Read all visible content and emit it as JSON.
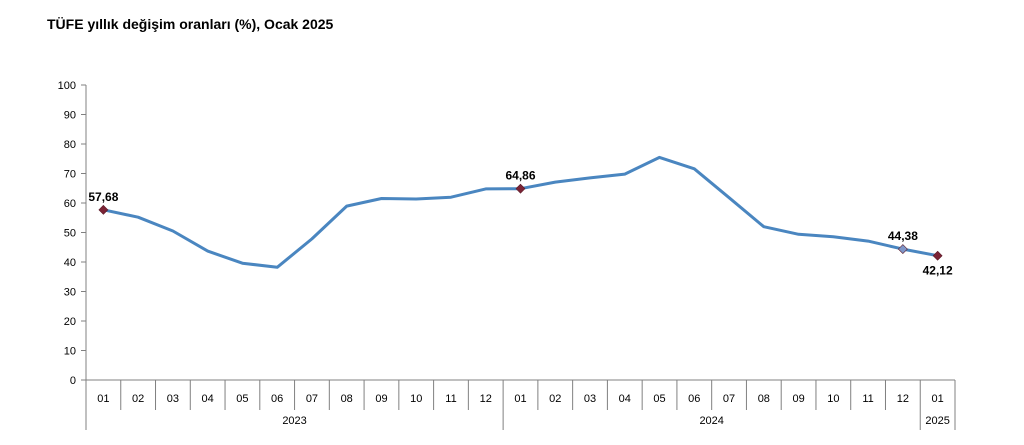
{
  "chart_data": {
    "type": "line",
    "title": "TÜFE yıllık değişim oranları (%), Ocak 2025",
    "xlabel": "",
    "ylabel": "",
    "ylim": [
      0,
      100
    ],
    "yticks": [
      0,
      10,
      20,
      30,
      40,
      50,
      60,
      70,
      80,
      90,
      100
    ],
    "grid": false,
    "legend": "none",
    "categories": [
      "01",
      "02",
      "03",
      "04",
      "05",
      "06",
      "07",
      "08",
      "09",
      "10",
      "11",
      "12",
      "01",
      "02",
      "03",
      "04",
      "05",
      "06",
      "07",
      "08",
      "09",
      "10",
      "11",
      "12",
      "01"
    ],
    "year_groups": [
      {
        "label": "2023",
        "count": 12
      },
      {
        "label": "2024",
        "count": 12
      },
      {
        "label": "2025",
        "count": 1
      }
    ],
    "series": [
      {
        "color": "#4a86c0",
        "values": [
          57.68,
          55.18,
          50.51,
          43.68,
          39.59,
          38.21,
          47.83,
          58.94,
          61.53,
          61.36,
          61.98,
          64.77,
          64.86,
          67.07,
          68.5,
          69.8,
          75.45,
          71.6,
          61.78,
          51.97,
          49.38,
          48.58,
          47.09,
          44.38,
          42.12
        ]
      }
    ],
    "markers": [
      {
        "index": 0,
        "label": "57,68",
        "color": "#7b2335",
        "label_pos": "above"
      },
      {
        "index": 12,
        "label": "64,86",
        "color": "#7b2335",
        "label_pos": "above"
      },
      {
        "index": 23,
        "label": "44,38",
        "color": "#7f96c8",
        "label_pos": "above"
      },
      {
        "index": 24,
        "label": "42,12",
        "color": "#7b2335",
        "label_pos": "below"
      }
    ]
  }
}
